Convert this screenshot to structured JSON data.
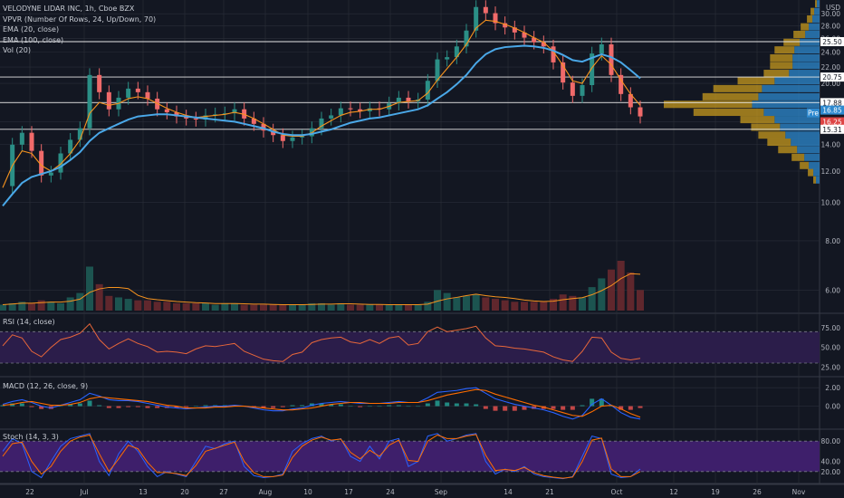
{
  "legend": {
    "symbol": "VELODYNE LIDAR INC, 1h, Cboe BZX",
    "vpvr": "VPVR (Number Of Rows, 24, Up/Down, 70)",
    "ema20": "EMA (20, close)",
    "ema100": "EMA (100, close)",
    "vol": "Vol (20)"
  },
  "panels": {
    "rsi": "RSI (14, close)",
    "macd": "MACD (12, 26, close, 9)",
    "stoch": "Stoch (14, 3, 3)"
  },
  "colors": {
    "background": "#131722",
    "grid": "#2a2e39",
    "up": "#26a69a",
    "down": "#ef5350",
    "candle": "#f06a6a",
    "ema20": "#f7931e",
    "ema100": "#4aa8e8",
    "vpvr_up": "#2d89cf",
    "vpvr_down": "#c79a1e",
    "band_fill": "#2b1d4a",
    "stoch_band": "#3e1f6b",
    "horizontal_line": "#e6e6e6"
  },
  "chart_data": [
    {
      "type": "line",
      "panel": "price",
      "title": "VELODYNE LIDAR INC, 1h, Cboe BZX",
      "x_tick_labels": [
        "22",
        "Jul",
        "13",
        "20",
        "27",
        "Aug",
        "10",
        "17",
        "24",
        "Sep",
        "14",
        "21",
        "Oct",
        "12",
        "19",
        "26",
        "Nov"
      ],
      "y_axis_unit": "USD",
      "y_tick_labels": [
        "6.00",
        "8.00",
        "10.00",
        "12.00",
        "14.00",
        "16.00",
        "18.00",
        "20.00",
        "22.00",
        "24.00",
        "26.00",
        "28.00",
        "30.00"
      ],
      "ylim": [
        5.3,
        32.5
      ],
      "log_scale": true,
      "series": [
        {
          "name": "Close",
          "values": [
            11.0,
            14.0,
            15.0,
            13.5,
            11.7,
            11.9,
            13.3,
            14.4,
            15.4,
            21.0,
            19.0,
            17.2,
            18.4,
            19.4,
            19.0,
            18.3,
            17.2,
            16.9,
            16.5,
            16.3,
            16.2,
            16.6,
            16.7,
            16.8,
            17.2,
            16.3,
            15.8,
            15.2,
            14.8,
            14.3,
            14.6,
            14.7,
            15.4,
            16.3,
            16.6,
            17.3,
            17.2,
            17.0,
            17.3,
            17.2,
            17.8,
            18.4,
            18.0,
            18.2,
            20.3,
            23.0,
            23.3,
            24.8,
            27.2,
            31.2,
            30.1,
            28.4,
            27.7,
            26.9,
            26.1,
            25.4,
            24.8,
            22.6,
            20.1,
            18.6,
            19.8,
            23.8,
            25.1,
            21.0,
            18.8,
            17.4,
            16.5
          ]
        },
        {
          "name": "EMA (20, close)",
          "values": [
            10.9,
            12.4,
            13.5,
            13.3,
            12.4,
            12.0,
            12.5,
            13.3,
            14.4,
            16.8,
            17.9,
            17.6,
            17.8,
            18.3,
            18.5,
            18.3,
            17.8,
            17.3,
            16.9,
            16.6,
            16.4,
            16.5,
            16.6,
            16.7,
            16.9,
            16.7,
            16.3,
            15.8,
            15.3,
            14.8,
            14.7,
            14.7,
            15.0,
            15.6,
            16.1,
            16.6,
            16.9,
            17.0,
            17.2,
            17.2,
            17.5,
            17.9,
            18.0,
            18.1,
            18.9,
            20.4,
            21.8,
            23.3,
            25.1,
            27.6,
            28.9,
            28.7,
            28.2,
            27.6,
            26.9,
            26.1,
            25.4,
            24.1,
            22.2,
            20.3,
            20.0,
            21.9,
            23.5,
            22.3,
            20.4,
            18.8,
            17.6
          ]
        },
        {
          "name": "EMA (100, close)",
          "values": [
            9.8,
            10.5,
            11.2,
            11.6,
            11.8,
            12.0,
            12.3,
            12.8,
            13.4,
            14.3,
            15.0,
            15.4,
            15.8,
            16.2,
            16.5,
            16.6,
            16.7,
            16.7,
            16.6,
            16.5,
            16.4,
            16.3,
            16.2,
            16.1,
            16.0,
            15.8,
            15.6,
            15.4,
            15.1,
            14.9,
            14.8,
            14.8,
            14.9,
            15.1,
            15.3,
            15.6,
            15.9,
            16.1,
            16.3,
            16.4,
            16.6,
            16.8,
            17.0,
            17.2,
            17.6,
            18.3,
            19.0,
            19.9,
            21.0,
            22.5,
            23.7,
            24.4,
            24.7,
            24.8,
            24.9,
            24.8,
            24.6,
            24.2,
            23.6,
            22.9,
            22.7,
            23.2,
            23.7,
            23.3,
            22.6,
            21.6,
            20.6
          ]
        }
      ],
      "horizontal_lines": [
        25.5,
        20.75,
        17.88,
        15.31
      ],
      "price_tags": [
        {
          "label": "25.50",
          "value": 25.5
        },
        {
          "label": "20.75",
          "value": 20.75
        },
        {
          "label": "17.88",
          "value": 17.88
        },
        {
          "label": "Pre",
          "value": 16.85
        },
        {
          "label": "16.85",
          "value": 16.85
        },
        {
          "label": "16.25",
          "value": 16.25
        },
        {
          "label": "15.31",
          "value": 15.31
        }
      ]
    },
    {
      "type": "bar",
      "panel": "volume_profile",
      "title": "VPVR (Number Of Rows, 24, Up/Down, 70)",
      "categories": [
        31.8,
        30.4,
        29.1,
        27.8,
        26.6,
        25.4,
        24.3,
        23.2,
        22.2,
        21.2,
        20.3,
        19.4,
        18.5,
        17.7,
        16.9,
        16.2,
        15.5,
        14.8,
        14.2,
        13.6,
        13.0,
        12.4,
        11.9,
        11.4
      ],
      "series": [
        {
          "name": "Up",
          "values": [
            3,
            6,
            8,
            12,
            16,
            22,
            28,
            30,
            30,
            34,
            50,
            64,
            68,
            75,
            62,
            50,
            44,
            38,
            32,
            25,
            17,
            12,
            7,
            4
          ]
        },
        {
          "name": "Down",
          "values": [
            2,
            4,
            6,
            9,
            13,
            18,
            22,
            25,
            25,
            28,
            41,
            54,
            62,
            98,
            78,
            38,
            32,
            30,
            26,
            21,
            14,
            10,
            6,
            3
          ]
        }
      ]
    },
    {
      "type": "bar",
      "panel": "volume",
      "title": "Vol (20)",
      "values": [
        4,
        5,
        6,
        5,
        7,
        6,
        5,
        9,
        12,
        30,
        18,
        10,
        9,
        8,
        7,
        7,
        6,
        6,
        5,
        5,
        5,
        5,
        4,
        5,
        5,
        4,
        4,
        4,
        4,
        4,
        4,
        4,
        5,
        5,
        4,
        5,
        4,
        4,
        4,
        4,
        4,
        4,
        4,
        4,
        6,
        14,
        12,
        9,
        10,
        11,
        9,
        8,
        7,
        6,
        6,
        6,
        6,
        8,
        11,
        10,
        9,
        16,
        22,
        28,
        34,
        26,
        14
      ]
    },
    {
      "type": "line",
      "panel": "rsi",
      "title": "RSI (14, close)",
      "y_tick_labels": [
        "25.00",
        "50.00",
        "75.00"
      ],
      "ylim": [
        15,
        90
      ],
      "bands": [
        30,
        70
      ],
      "series": [
        {
          "name": "RSI",
          "values": [
            52,
            66,
            62,
            45,
            38,
            50,
            60,
            63,
            68,
            80,
            60,
            48,
            55,
            61,
            55,
            51,
            44,
            45,
            44,
            42,
            48,
            52,
            51,
            53,
            55,
            45,
            40,
            35,
            33,
            32,
            41,
            44,
            56,
            60,
            62,
            63,
            57,
            55,
            60,
            55,
            62,
            64,
            53,
            55,
            70,
            76,
            70,
            72,
            74,
            77,
            62,
            52,
            51,
            49,
            48,
            46,
            44,
            38,
            34,
            32,
            45,
            63,
            62,
            44,
            36,
            34,
            36
          ]
        }
      ]
    },
    {
      "type": "line",
      "panel": "macd",
      "title": "MACD (12, 26, close, 9)",
      "y_tick_labels": [
        "0.00",
        "2.00"
      ],
      "ylim": [
        -2.3,
        3.0
      ],
      "series": [
        {
          "name": "MACD",
          "values": [
            0.2,
            0.5,
            0.7,
            0.4,
            0.0,
            -0.2,
            0.1,
            0.4,
            0.7,
            1.4,
            1.1,
            0.7,
            0.6,
            0.6,
            0.5,
            0.3,
            0.1,
            -0.1,
            -0.2,
            -0.3,
            -0.2,
            -0.1,
            0.0,
            0.0,
            0.1,
            0.0,
            -0.2,
            -0.4,
            -0.5,
            -0.5,
            -0.3,
            -0.2,
            0.1,
            0.3,
            0.4,
            0.5,
            0.4,
            0.3,
            0.3,
            0.3,
            0.4,
            0.5,
            0.4,
            0.4,
            0.9,
            1.5,
            1.6,
            1.7,
            1.9,
            2.0,
            1.4,
            0.8,
            0.5,
            0.2,
            0.0,
            -0.2,
            -0.4,
            -0.7,
            -1.1,
            -1.4,
            -1.0,
            0.2,
            0.8,
            0.1,
            -0.7,
            -1.2,
            -1.4
          ]
        },
        {
          "name": "Signal",
          "values": [
            0.1,
            0.2,
            0.4,
            0.5,
            0.3,
            0.1,
            0.1,
            0.2,
            0.4,
            0.8,
            1.0,
            0.9,
            0.8,
            0.7,
            0.6,
            0.5,
            0.3,
            0.1,
            0.0,
            -0.2,
            -0.2,
            -0.2,
            -0.1,
            -0.1,
            0.0,
            0.0,
            -0.1,
            -0.2,
            -0.3,
            -0.4,
            -0.4,
            -0.3,
            -0.2,
            0.0,
            0.2,
            0.3,
            0.4,
            0.4,
            0.3,
            0.3,
            0.3,
            0.4,
            0.4,
            0.4,
            0.6,
            0.9,
            1.2,
            1.4,
            1.6,
            1.8,
            1.7,
            1.3,
            1.0,
            0.7,
            0.4,
            0.1,
            -0.1,
            -0.4,
            -0.7,
            -1.0,
            -1.1,
            -0.6,
            0.0,
            0.1,
            -0.3,
            -0.8,
            -1.2
          ]
        }
      ]
    },
    {
      "type": "line",
      "panel": "stoch",
      "title": "Stoch (14, 3, 3)",
      "y_tick_labels": [
        "20.00",
        "40.00",
        "80.00"
      ],
      "ylim": [
        0,
        100
      ],
      "bands": [
        20,
        80
      ],
      "series": [
        {
          "name": "%K",
          "values": [
            60,
            85,
            75,
            20,
            8,
            40,
            70,
            85,
            90,
            95,
            40,
            12,
            55,
            80,
            60,
            30,
            10,
            20,
            15,
            10,
            40,
            70,
            65,
            75,
            80,
            30,
            12,
            8,
            10,
            15,
            60,
            75,
            85,
            90,
            80,
            85,
            50,
            40,
            70,
            45,
            80,
            85,
            30,
            40,
            90,
            95,
            80,
            85,
            92,
            95,
            40,
            15,
            25,
            20,
            30,
            15,
            10,
            8,
            6,
            10,
            50,
            90,
            85,
            15,
            8,
            10,
            25
          ]
        },
        {
          "name": "%D",
          "values": [
            50,
            75,
            78,
            40,
            15,
            30,
            60,
            80,
            88,
            92,
            55,
            20,
            45,
            72,
            65,
            38,
            18,
            18,
            16,
            12,
            32,
            60,
            66,
            72,
            78,
            40,
            18,
            10,
            10,
            13,
            48,
            70,
            82,
            88,
            82,
            84,
            58,
            45,
            62,
            50,
            72,
            82,
            42,
            40,
            80,
            92,
            85,
            85,
            90,
            93,
            52,
            22,
            24,
            22,
            28,
            18,
            12,
            9,
            7,
            9,
            40,
            82,
            86,
            25,
            10,
            10,
            20
          ]
        }
      ]
    }
  ]
}
